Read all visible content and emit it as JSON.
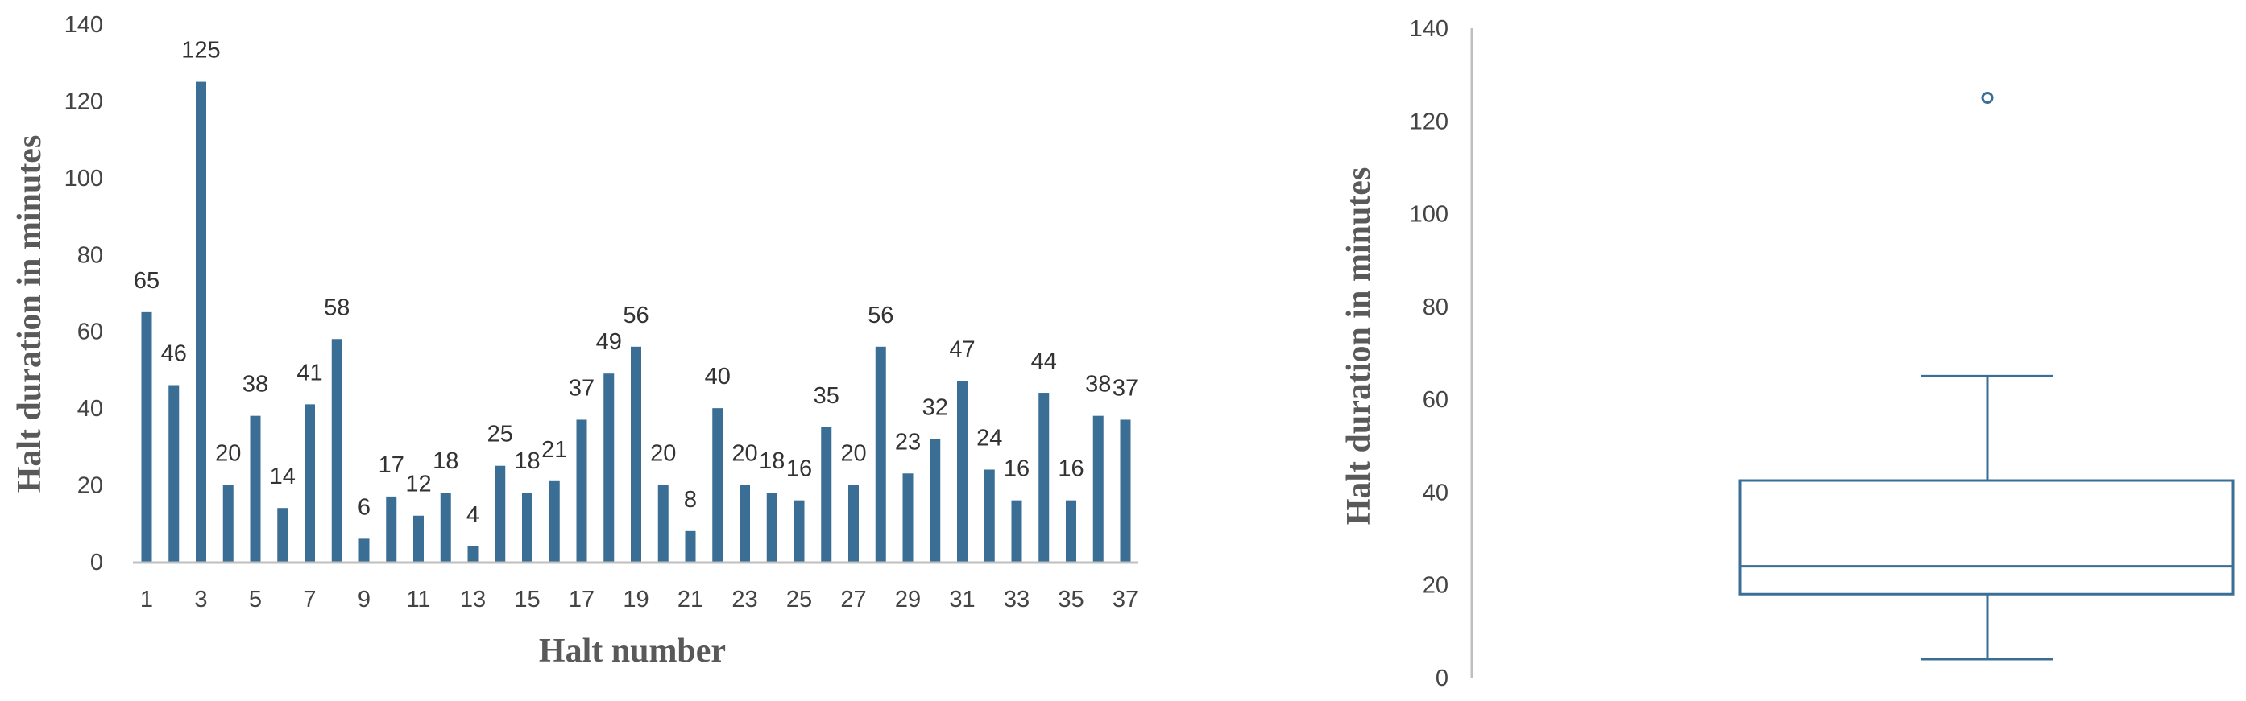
{
  "chart_data": [
    {
      "type": "bar",
      "xlabel": "Halt number",
      "ylabel": "Halt duration in minutes",
      "ylim": [
        0,
        140
      ],
      "yticks": [
        0,
        20,
        40,
        60,
        80,
        100,
        120,
        140
      ],
      "xtick_labels": [
        "1",
        "3",
        "5",
        "7",
        "9",
        "11",
        "13",
        "15",
        "17",
        "19",
        "21",
        "23",
        "25",
        "27",
        "29",
        "31",
        "33",
        "35",
        "37"
      ],
      "categories": [
        1,
        2,
        3,
        4,
        5,
        6,
        7,
        8,
        9,
        10,
        11,
        12,
        13,
        14,
        15,
        16,
        17,
        18,
        19,
        20,
        21,
        22,
        23,
        24,
        25,
        26,
        27,
        28,
        29,
        30,
        31,
        32,
        33,
        34,
        35,
        36,
        37
      ],
      "values": [
        65,
        46,
        125,
        20,
        38,
        14,
        41,
        58,
        6,
        17,
        12,
        18,
        4,
        25,
        18,
        21,
        37,
        49,
        56,
        20,
        8,
        40,
        20,
        18,
        16,
        35,
        20,
        56,
        23,
        32,
        47,
        24,
        16,
        44,
        16,
        38,
        37
      ],
      "data_labels": true,
      "bar_color": "#3A6E95",
      "grid": false
    },
    {
      "type": "boxplot",
      "xlabel": "",
      "ylabel": "Halt duration in minutes",
      "ylim": [
        0,
        140
      ],
      "yticks": [
        0,
        20,
        40,
        60,
        80,
        100,
        120,
        140
      ],
      "whisker_low": 4,
      "q1": 18,
      "median": 24,
      "q3": 42.5,
      "whisker_high": 65,
      "outliers": [
        125
      ],
      "color": "#3A6E95",
      "grid": false
    }
  ]
}
